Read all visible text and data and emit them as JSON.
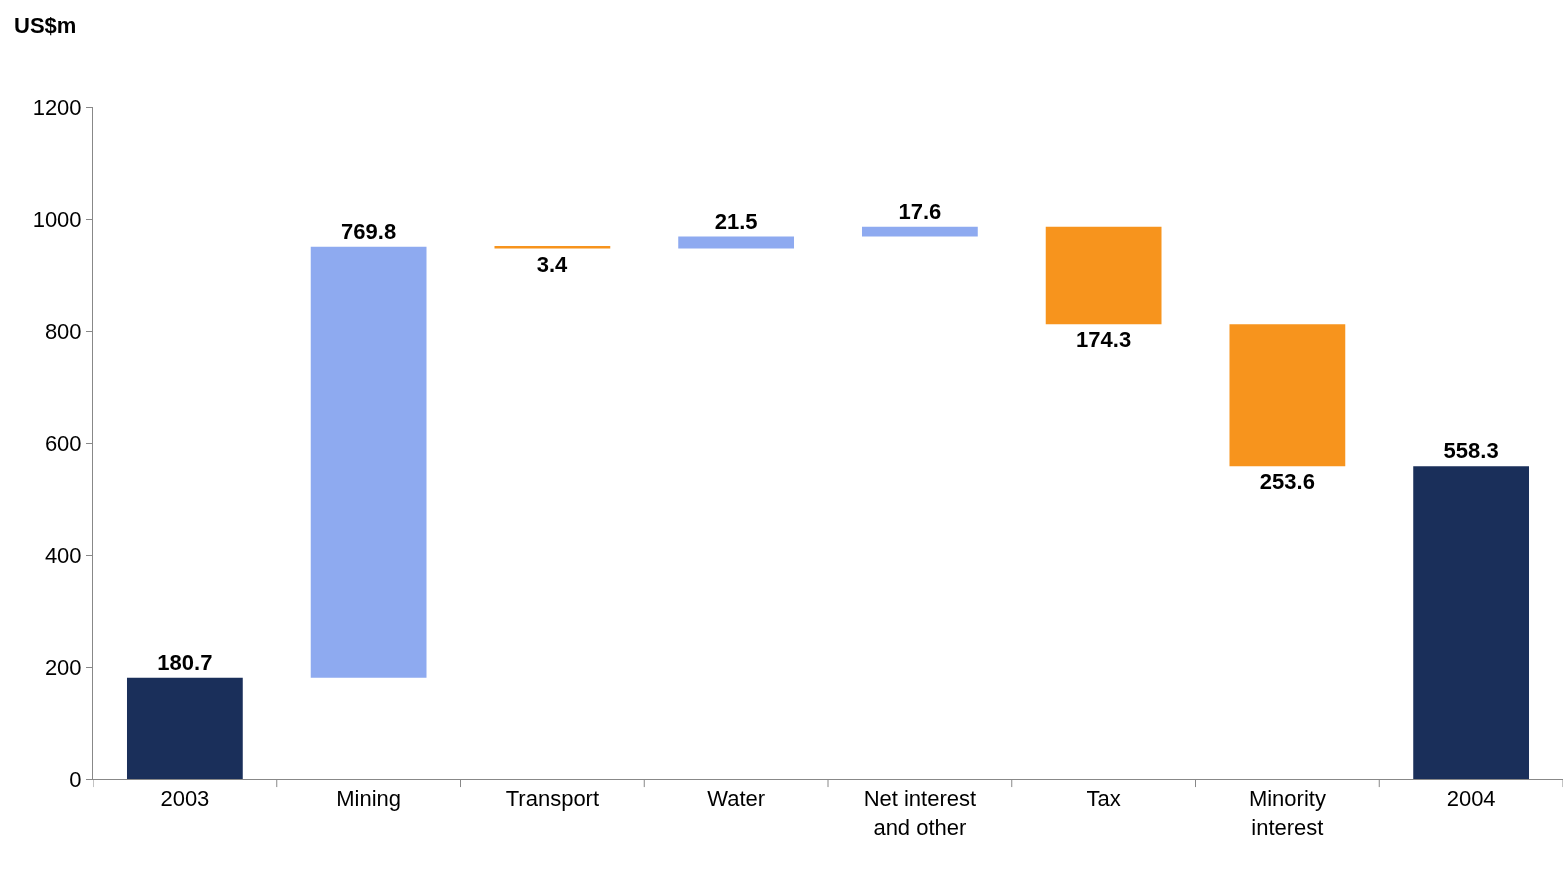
{
  "chart_data": {
    "type": "bar",
    "ylabel": "US$m",
    "categories": [
      "2003",
      "Mining",
      "Transport",
      "Water",
      "Net interest\nand other",
      "Tax",
      "Minority\ninterest",
      "2004"
    ],
    "values": [
      180.7,
      769.8,
      -3.4,
      21.5,
      17.6,
      -174.3,
      -253.6,
      558.3
    ],
    "base": [
      0,
      180.7,
      950.5,
      947.1,
      968.6,
      986.2,
      811.9,
      0
    ],
    "colors": [
      "#1a2f5a",
      "#8eaaf0",
      "#f7941d",
      "#8eaaf0",
      "#8eaaf0",
      "#f7941d",
      "#f7941d",
      "#1a2f5a"
    ],
    "value_labels": [
      "180.7",
      "769.8",
      "3.4",
      "21.5",
      "17.6",
      "174.3",
      "253.6",
      "558.3"
    ],
    "ylim": [
      0,
      1200
    ],
    "yticks": [
      0,
      200,
      400,
      600,
      800,
      1000,
      1200
    ],
    "grid": false
  }
}
